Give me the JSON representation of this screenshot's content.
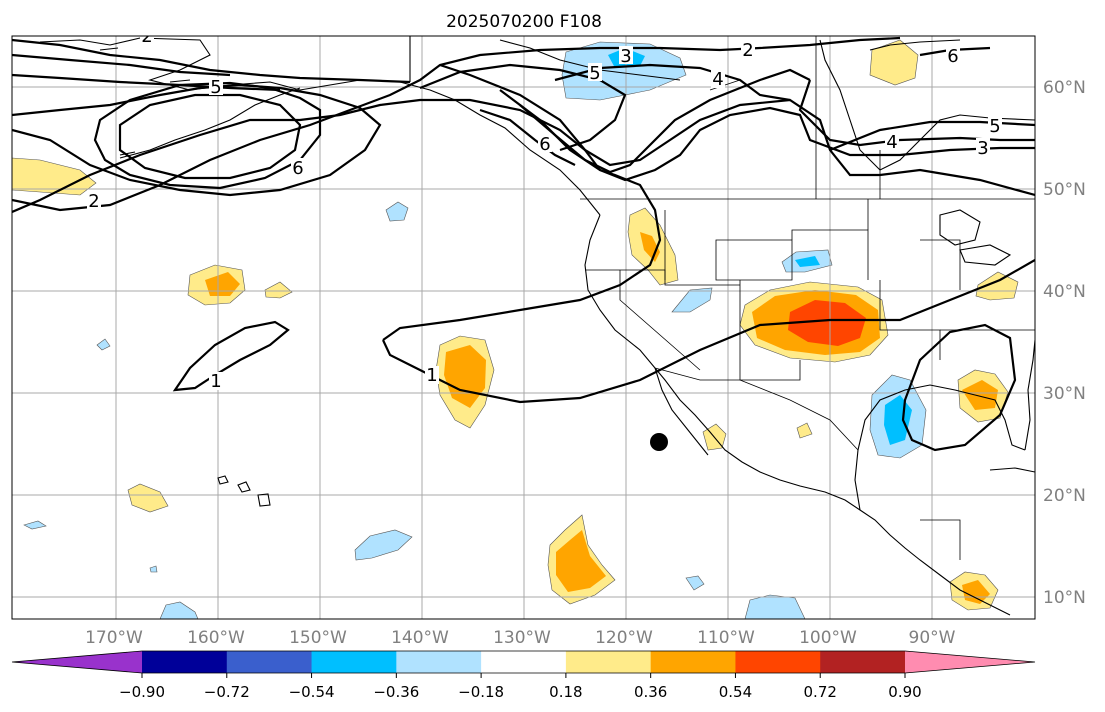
{
  "title": "2025070200 F108",
  "lon_ticks": [
    "170°W",
    "160°W",
    "150°W",
    "140°W",
    "130°W",
    "120°W",
    "110°W",
    "100°W",
    "90°W"
  ],
  "lat_ticks": [
    "60°N",
    "50°N",
    "40°N",
    "30°N",
    "20°N",
    "10°N"
  ],
  "colorbar": {
    "ticks": [
      "−0.90",
      "−0.72",
      "−0.54",
      "−0.36",
      "−0.18",
      "0.18",
      "0.36",
      "0.54",
      "0.72",
      "0.90"
    ],
    "colors": {
      "below": "#9932cc",
      "bins": [
        "#000099",
        "#3a5fcd",
        "#00bfff",
        "#b0e2ff",
        "#ffffff",
        "#ffeb8a",
        "#ffa500",
        "#ff4500",
        "#b22222"
      ],
      "above": "#ff8cb0"
    }
  },
  "contour_labels": {
    "c1": "1",
    "c2": "2",
    "c3": "3",
    "c4": "4",
    "c5": "5",
    "c6": "6"
  },
  "storm_marker": "storm-center"
}
